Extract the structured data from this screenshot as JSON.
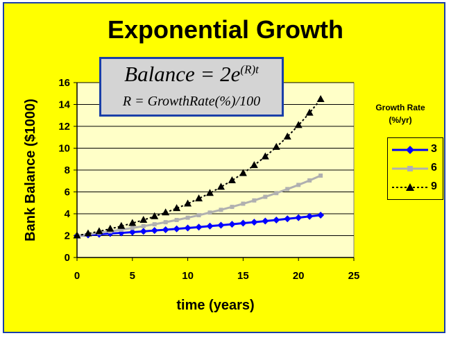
{
  "chart_data": {
    "type": "line",
    "title": "Exponential Growth",
    "formula": {
      "main_lhs": "Balance = 2e",
      "main_exp": "(R)t",
      "sub": "R = GrowthRate(%)/100"
    },
    "xlabel": "time (years)",
    "ylabel": "Bank Balance ($1000)",
    "xlim": [
      0,
      25
    ],
    "ylim": [
      0,
      16
    ],
    "xticks": [
      0,
      5,
      10,
      15,
      20,
      25
    ],
    "yticks": [
      0,
      2,
      4,
      6,
      8,
      10,
      12,
      14,
      16
    ],
    "grid": "horizontal",
    "legend_title": [
      "Growth Rate",
      "(%/yr)"
    ],
    "legend_position": "right",
    "x": [
      0,
      1,
      2,
      3,
      4,
      5,
      6,
      7,
      8,
      9,
      10,
      11,
      12,
      13,
      14,
      15,
      16,
      17,
      18,
      19,
      20,
      21,
      22
    ],
    "series": [
      {
        "name": "3",
        "color": "#0000ff",
        "marker": "diamond",
        "line": "solid",
        "values": [
          2.0,
          2.06,
          2.12,
          2.19,
          2.25,
          2.32,
          2.39,
          2.47,
          2.54,
          2.62,
          2.7,
          2.78,
          2.87,
          2.95,
          3.04,
          3.14,
          3.23,
          3.33,
          3.43,
          3.54,
          3.64,
          3.76,
          3.87
        ]
      },
      {
        "name": "6",
        "color": "#b0b0b0",
        "marker": "square",
        "line": "solid",
        "values": [
          2.0,
          2.12,
          2.25,
          2.39,
          2.54,
          2.7,
          2.87,
          3.04,
          3.23,
          3.43,
          3.64,
          3.87,
          4.11,
          4.36,
          4.63,
          4.92,
          5.22,
          5.55,
          5.89,
          6.26,
          6.64,
          7.05,
          7.49
        ]
      },
      {
        "name": "9",
        "color": "#000000",
        "marker": "triangle",
        "line": "dotted",
        "values": [
          2.0,
          2.19,
          2.39,
          2.62,
          2.87,
          3.14,
          3.43,
          3.76,
          4.11,
          4.5,
          4.92,
          5.39,
          5.89,
          6.45,
          7.05,
          7.71,
          8.44,
          9.23,
          10.1,
          11.05,
          12.1,
          13.23,
          14.48
        ]
      }
    ]
  },
  "colors": {
    "background": "#ffff00",
    "frame_border": "#1a3fa8",
    "plot_area": "#ffffc8",
    "formula_box": "#d4d4d4"
  }
}
